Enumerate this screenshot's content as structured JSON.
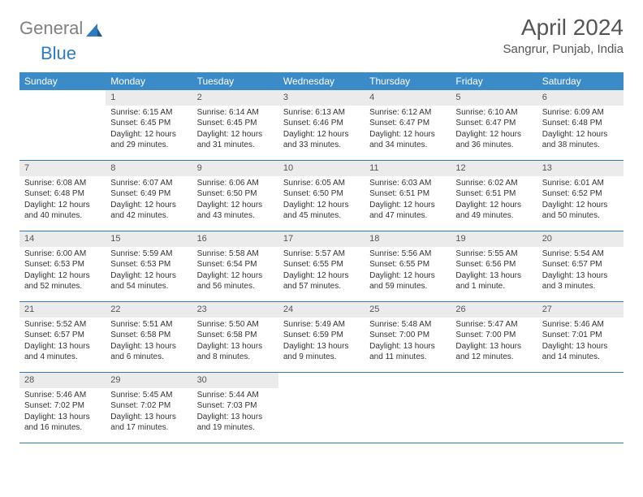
{
  "logo": {
    "text_gray": "General",
    "text_blue": "Blue"
  },
  "title": "April 2024",
  "location": "Sangrur, Punjab, India",
  "day_headers": [
    "Sunday",
    "Monday",
    "Tuesday",
    "Wednesday",
    "Thursday",
    "Friday",
    "Saturday"
  ],
  "colors": {
    "header_bg": "#3b8bc9",
    "row_border": "#2f7bbf",
    "daynum_bg": "#ebebeb",
    "text": "#333333",
    "logo_gray": "#808080",
    "logo_blue": "#2f7bbf"
  },
  "weeks": [
    [
      {
        "empty": true
      },
      {
        "num": "1",
        "sunrise": "Sunrise: 6:15 AM",
        "sunset": "Sunset: 6:45 PM",
        "daylight1": "Daylight: 12 hours",
        "daylight2": "and 29 minutes."
      },
      {
        "num": "2",
        "sunrise": "Sunrise: 6:14 AM",
        "sunset": "Sunset: 6:45 PM",
        "daylight1": "Daylight: 12 hours",
        "daylight2": "and 31 minutes."
      },
      {
        "num": "3",
        "sunrise": "Sunrise: 6:13 AM",
        "sunset": "Sunset: 6:46 PM",
        "daylight1": "Daylight: 12 hours",
        "daylight2": "and 33 minutes."
      },
      {
        "num": "4",
        "sunrise": "Sunrise: 6:12 AM",
        "sunset": "Sunset: 6:47 PM",
        "daylight1": "Daylight: 12 hours",
        "daylight2": "and 34 minutes."
      },
      {
        "num": "5",
        "sunrise": "Sunrise: 6:10 AM",
        "sunset": "Sunset: 6:47 PM",
        "daylight1": "Daylight: 12 hours",
        "daylight2": "and 36 minutes."
      },
      {
        "num": "6",
        "sunrise": "Sunrise: 6:09 AM",
        "sunset": "Sunset: 6:48 PM",
        "daylight1": "Daylight: 12 hours",
        "daylight2": "and 38 minutes."
      }
    ],
    [
      {
        "num": "7",
        "sunrise": "Sunrise: 6:08 AM",
        "sunset": "Sunset: 6:48 PM",
        "daylight1": "Daylight: 12 hours",
        "daylight2": "and 40 minutes."
      },
      {
        "num": "8",
        "sunrise": "Sunrise: 6:07 AM",
        "sunset": "Sunset: 6:49 PM",
        "daylight1": "Daylight: 12 hours",
        "daylight2": "and 42 minutes."
      },
      {
        "num": "9",
        "sunrise": "Sunrise: 6:06 AM",
        "sunset": "Sunset: 6:50 PM",
        "daylight1": "Daylight: 12 hours",
        "daylight2": "and 43 minutes."
      },
      {
        "num": "10",
        "sunrise": "Sunrise: 6:05 AM",
        "sunset": "Sunset: 6:50 PM",
        "daylight1": "Daylight: 12 hours",
        "daylight2": "and 45 minutes."
      },
      {
        "num": "11",
        "sunrise": "Sunrise: 6:03 AM",
        "sunset": "Sunset: 6:51 PM",
        "daylight1": "Daylight: 12 hours",
        "daylight2": "and 47 minutes."
      },
      {
        "num": "12",
        "sunrise": "Sunrise: 6:02 AM",
        "sunset": "Sunset: 6:51 PM",
        "daylight1": "Daylight: 12 hours",
        "daylight2": "and 49 minutes."
      },
      {
        "num": "13",
        "sunrise": "Sunrise: 6:01 AM",
        "sunset": "Sunset: 6:52 PM",
        "daylight1": "Daylight: 12 hours",
        "daylight2": "and 50 minutes."
      }
    ],
    [
      {
        "num": "14",
        "sunrise": "Sunrise: 6:00 AM",
        "sunset": "Sunset: 6:53 PM",
        "daylight1": "Daylight: 12 hours",
        "daylight2": "and 52 minutes."
      },
      {
        "num": "15",
        "sunrise": "Sunrise: 5:59 AM",
        "sunset": "Sunset: 6:53 PM",
        "daylight1": "Daylight: 12 hours",
        "daylight2": "and 54 minutes."
      },
      {
        "num": "16",
        "sunrise": "Sunrise: 5:58 AM",
        "sunset": "Sunset: 6:54 PM",
        "daylight1": "Daylight: 12 hours",
        "daylight2": "and 56 minutes."
      },
      {
        "num": "17",
        "sunrise": "Sunrise: 5:57 AM",
        "sunset": "Sunset: 6:55 PM",
        "daylight1": "Daylight: 12 hours",
        "daylight2": "and 57 minutes."
      },
      {
        "num": "18",
        "sunrise": "Sunrise: 5:56 AM",
        "sunset": "Sunset: 6:55 PM",
        "daylight1": "Daylight: 12 hours",
        "daylight2": "and 59 minutes."
      },
      {
        "num": "19",
        "sunrise": "Sunrise: 5:55 AM",
        "sunset": "Sunset: 6:56 PM",
        "daylight1": "Daylight: 13 hours",
        "daylight2": "and 1 minute."
      },
      {
        "num": "20",
        "sunrise": "Sunrise: 5:54 AM",
        "sunset": "Sunset: 6:57 PM",
        "daylight1": "Daylight: 13 hours",
        "daylight2": "and 3 minutes."
      }
    ],
    [
      {
        "num": "21",
        "sunrise": "Sunrise: 5:52 AM",
        "sunset": "Sunset: 6:57 PM",
        "daylight1": "Daylight: 13 hours",
        "daylight2": "and 4 minutes."
      },
      {
        "num": "22",
        "sunrise": "Sunrise: 5:51 AM",
        "sunset": "Sunset: 6:58 PM",
        "daylight1": "Daylight: 13 hours",
        "daylight2": "and 6 minutes."
      },
      {
        "num": "23",
        "sunrise": "Sunrise: 5:50 AM",
        "sunset": "Sunset: 6:58 PM",
        "daylight1": "Daylight: 13 hours",
        "daylight2": "and 8 minutes."
      },
      {
        "num": "24",
        "sunrise": "Sunrise: 5:49 AM",
        "sunset": "Sunset: 6:59 PM",
        "daylight1": "Daylight: 13 hours",
        "daylight2": "and 9 minutes."
      },
      {
        "num": "25",
        "sunrise": "Sunrise: 5:48 AM",
        "sunset": "Sunset: 7:00 PM",
        "daylight1": "Daylight: 13 hours",
        "daylight2": "and 11 minutes."
      },
      {
        "num": "26",
        "sunrise": "Sunrise: 5:47 AM",
        "sunset": "Sunset: 7:00 PM",
        "daylight1": "Daylight: 13 hours",
        "daylight2": "and 12 minutes."
      },
      {
        "num": "27",
        "sunrise": "Sunrise: 5:46 AM",
        "sunset": "Sunset: 7:01 PM",
        "daylight1": "Daylight: 13 hours",
        "daylight2": "and 14 minutes."
      }
    ],
    [
      {
        "num": "28",
        "sunrise": "Sunrise: 5:46 AM",
        "sunset": "Sunset: 7:02 PM",
        "daylight1": "Daylight: 13 hours",
        "daylight2": "and 16 minutes."
      },
      {
        "num": "29",
        "sunrise": "Sunrise: 5:45 AM",
        "sunset": "Sunset: 7:02 PM",
        "daylight1": "Daylight: 13 hours",
        "daylight2": "and 17 minutes."
      },
      {
        "num": "30",
        "sunrise": "Sunrise: 5:44 AM",
        "sunset": "Sunset: 7:03 PM",
        "daylight1": "Daylight: 13 hours",
        "daylight2": "and 19 minutes."
      },
      {
        "empty": true
      },
      {
        "empty": true
      },
      {
        "empty": true
      },
      {
        "empty": true
      }
    ]
  ]
}
